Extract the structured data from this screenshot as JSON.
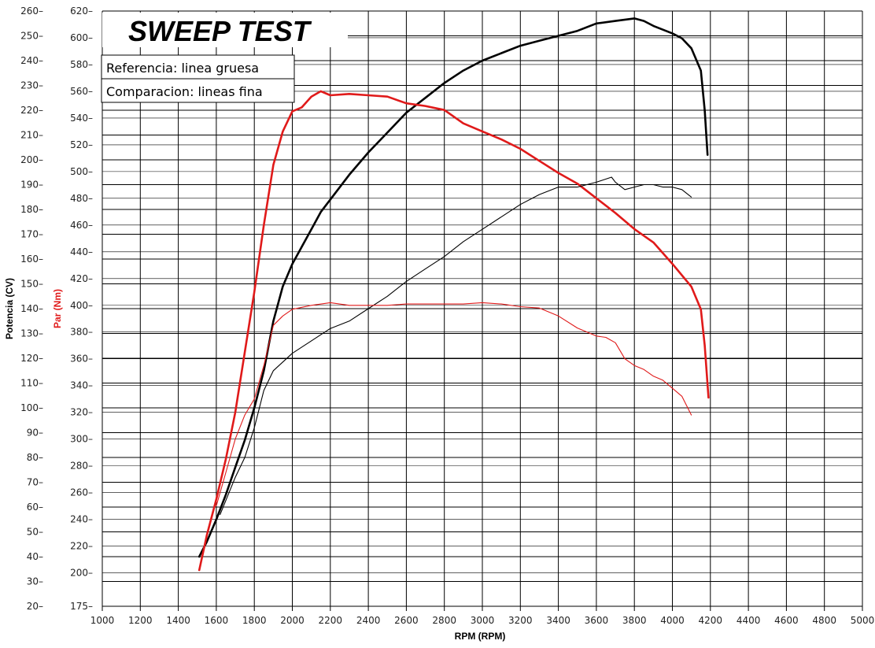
{
  "chart_data": {
    "type": "line",
    "title": "SWEEP TEST",
    "xlabel": "RPM (RPM)",
    "ylabel_left": "Potencia (CV)",
    "ylabel_right": "Par (Nm)",
    "xlim": [
      1000,
      5000
    ],
    "ylim_left": [
      20,
      260
    ],
    "ylim_right": [
      175,
      620
    ],
    "x_ticks": [
      1000,
      1200,
      1400,
      1600,
      1800,
      2000,
      2200,
      2400,
      2600,
      2800,
      3000,
      3200,
      3400,
      3600,
      3800,
      4000,
      4200,
      4400,
      4600,
      4800,
      5000
    ],
    "y_ticks_left": [
      20,
      30,
      40,
      50,
      60,
      70,
      80,
      90,
      100,
      110,
      120,
      130,
      140,
      150,
      160,
      170,
      180,
      190,
      200,
      210,
      220,
      230,
      240,
      250,
      260
    ],
    "y_ticks_right": [
      175,
      200,
      220,
      240,
      260,
      280,
      300,
      320,
      340,
      360,
      380,
      400,
      420,
      440,
      460,
      480,
      500,
      520,
      540,
      560,
      580,
      600,
      620
    ],
    "grid": true,
    "legend": {
      "position": "top-left",
      "entries": [
        "Referencia: linea gruesa",
        "Comparacion: lineas fina"
      ]
    },
    "series": [
      {
        "axis": "left",
        "color": "#000000",
        "weight": "thick",
        "points": [
          [
            1510,
            40
          ],
          [
            1550,
            46
          ],
          [
            1600,
            55
          ],
          [
            1650,
            65
          ],
          [
            1700,
            76
          ],
          [
            1750,
            87
          ],
          [
            1800,
            100
          ],
          [
            1850,
            115
          ],
          [
            1900,
            135
          ],
          [
            1950,
            149
          ],
          [
            2000,
            158
          ],
          [
            2050,
            165
          ],
          [
            2100,
            172
          ],
          [
            2150,
            179
          ],
          [
            2200,
            184
          ],
          [
            2300,
            194
          ],
          [
            2400,
            203
          ],
          [
            2500,
            211
          ],
          [
            2600,
            219
          ],
          [
            2700,
            225
          ],
          [
            2800,
            231
          ],
          [
            2900,
            236
          ],
          [
            3000,
            240
          ],
          [
            3100,
            243
          ],
          [
            3200,
            246
          ],
          [
            3300,
            248
          ],
          [
            3400,
            250
          ],
          [
            3500,
            252
          ],
          [
            3600,
            255
          ],
          [
            3700,
            256
          ],
          [
            3800,
            257
          ],
          [
            3850,
            256
          ],
          [
            3900,
            254
          ],
          [
            4000,
            251
          ],
          [
            4050,
            249
          ],
          [
            4100,
            245
          ],
          [
            4150,
            236
          ],
          [
            4170,
            220
          ],
          [
            4185,
            202
          ]
        ]
      },
      {
        "axis": "right",
        "color": "#e01a1a",
        "weight": "thick",
        "points": [
          [
            1510,
            202
          ],
          [
            1550,
            228
          ],
          [
            1600,
            255
          ],
          [
            1650,
            285
          ],
          [
            1700,
            320
          ],
          [
            1750,
            365
          ],
          [
            1800,
            410
          ],
          [
            1850,
            460
          ],
          [
            1900,
            505
          ],
          [
            1950,
            530
          ],
          [
            2000,
            545
          ],
          [
            2050,
            548
          ],
          [
            2100,
            556
          ],
          [
            2150,
            560
          ],
          [
            2200,
            557
          ],
          [
            2300,
            558
          ],
          [
            2400,
            557
          ],
          [
            2500,
            556
          ],
          [
            2600,
            551
          ],
          [
            2700,
            549
          ],
          [
            2800,
            546
          ],
          [
            2900,
            536
          ],
          [
            3000,
            530
          ],
          [
            3100,
            524
          ],
          [
            3200,
            517
          ],
          [
            3300,
            508
          ],
          [
            3400,
            499
          ],
          [
            3500,
            491
          ],
          [
            3600,
            480
          ],
          [
            3700,
            469
          ],
          [
            3800,
            457
          ],
          [
            3900,
            447
          ],
          [
            4000,
            431
          ],
          [
            4100,
            414
          ],
          [
            4150,
            397
          ],
          [
            4170,
            370
          ],
          [
            4190,
            331
          ]
        ]
      },
      {
        "axis": "left",
        "color": "#000000",
        "weight": "thin",
        "points": [
          [
            1620,
            57
          ],
          [
            1700,
            72
          ],
          [
            1750,
            80
          ],
          [
            1800,
            92
          ],
          [
            1850,
            107
          ],
          [
            1900,
            115
          ],
          [
            2000,
            122
          ],
          [
            2100,
            127
          ],
          [
            2200,
            132
          ],
          [
            2300,
            135
          ],
          [
            2400,
            140
          ],
          [
            2500,
            145
          ],
          [
            2600,
            151
          ],
          [
            2700,
            156
          ],
          [
            2800,
            161
          ],
          [
            2900,
            167
          ],
          [
            3000,
            172
          ],
          [
            3100,
            177
          ],
          [
            3200,
            182
          ],
          [
            3300,
            186
          ],
          [
            3400,
            189
          ],
          [
            3500,
            189
          ],
          [
            3600,
            191
          ],
          [
            3680,
            193
          ],
          [
            3700,
            191
          ],
          [
            3750,
            188
          ],
          [
            3800,
            189
          ],
          [
            3850,
            190
          ],
          [
            3900,
            190
          ],
          [
            3950,
            189
          ],
          [
            4000,
            189
          ],
          [
            4050,
            188
          ],
          [
            4100,
            185
          ]
        ]
      },
      {
        "axis": "right",
        "color": "#e01a1a",
        "weight": "thin",
        "points": [
          [
            1600,
            250
          ],
          [
            1650,
            275
          ],
          [
            1700,
            300
          ],
          [
            1750,
            318
          ],
          [
            1800,
            330
          ],
          [
            1850,
            355
          ],
          [
            1900,
            385
          ],
          [
            1950,
            392
          ],
          [
            2000,
            397
          ],
          [
            2100,
            400
          ],
          [
            2200,
            402
          ],
          [
            2300,
            400
          ],
          [
            2400,
            400
          ],
          [
            2500,
            400
          ],
          [
            2600,
            401
          ],
          [
            2700,
            401
          ],
          [
            2800,
            401
          ],
          [
            2900,
            401
          ],
          [
            3000,
            402
          ],
          [
            3100,
            401
          ],
          [
            3200,
            399
          ],
          [
            3300,
            398
          ],
          [
            3400,
            392
          ],
          [
            3500,
            383
          ],
          [
            3600,
            377
          ],
          [
            3650,
            376
          ],
          [
            3700,
            372
          ],
          [
            3750,
            360
          ],
          [
            3800,
            355
          ],
          [
            3850,
            352
          ],
          [
            3900,
            347
          ],
          [
            3950,
            344
          ],
          [
            4000,
            338
          ],
          [
            4050,
            332
          ],
          [
            4100,
            318
          ]
        ]
      }
    ]
  }
}
